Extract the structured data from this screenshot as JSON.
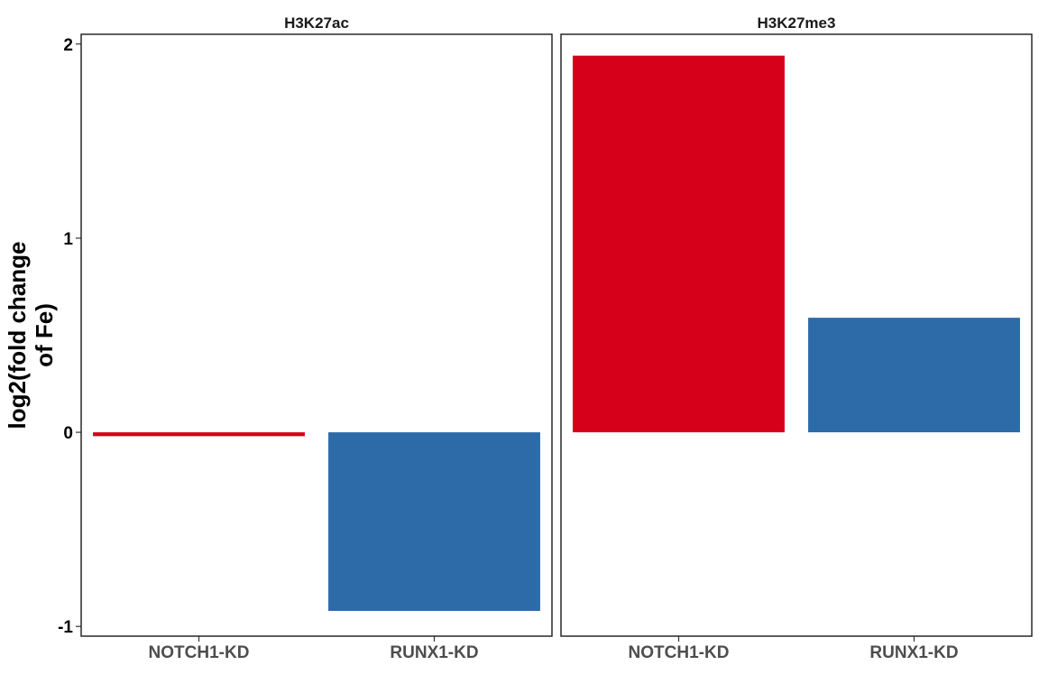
{
  "chart_data": {
    "type": "bar",
    "ylabel_lines": [
      "log2(fold change",
      "of Fe)"
    ],
    "ylim": [
      -1.05,
      2.05
    ],
    "yticks": [
      {
        "value": -1,
        "label": "-1"
      },
      {
        "value": 0,
        "label": "0"
      },
      {
        "value": 1,
        "label": "1"
      },
      {
        "value": 2,
        "label": "2"
      }
    ],
    "categories": [
      "NOTCH1-KD",
      "RUNX1-KD"
    ],
    "colors": {
      "NOTCH1-KD": "#d7001a",
      "RUNX1-KD": "#2d6aa8"
    },
    "facets": [
      {
        "title": "H3K27ac",
        "values": [
          -0.02,
          -0.92
        ]
      },
      {
        "title": "H3K27me3",
        "values": [
          1.94,
          0.59
        ]
      }
    ],
    "grid": false,
    "legend": "none"
  }
}
